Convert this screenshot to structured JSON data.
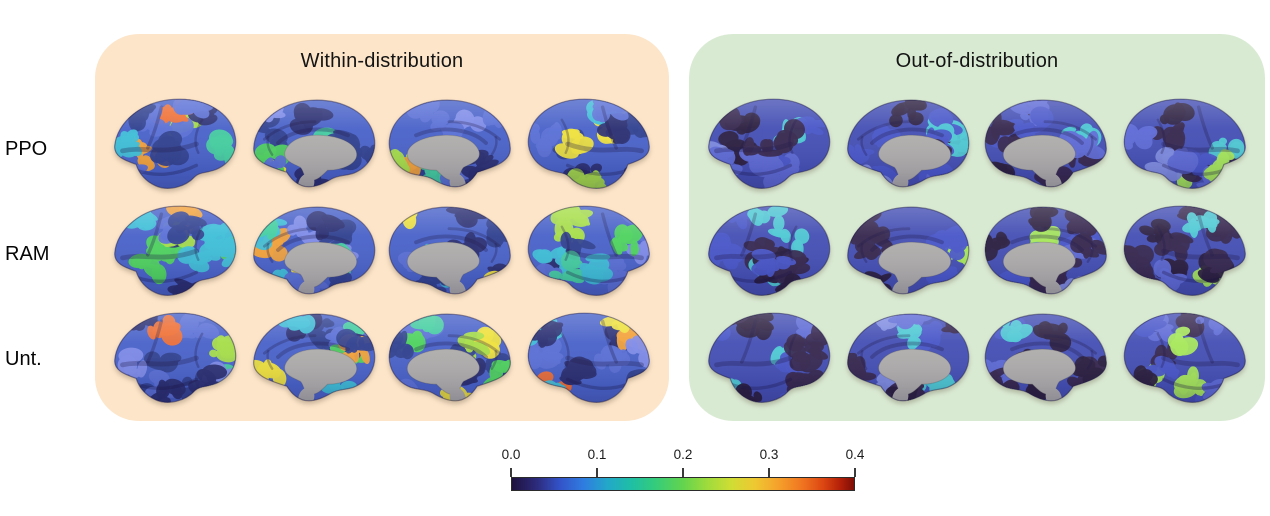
{
  "chart_data": {
    "type": "heatmap",
    "title": "",
    "description": "Brain-surface value maps (3 models x 2 conditions x 4 cortical views) with shared horizontal colorbar",
    "panels": [
      {
        "title": "Within-distribution",
        "rows": [
          "PPO",
          "RAM",
          "Unt."
        ],
        "views": [
          "lateral left",
          "medial left",
          "medial right",
          "lateral right"
        ],
        "value_summary": {
          "PPO": "mostly 0.05-0.2 (blue/cyan), temporo-parietal hotspots reaching ~0.3-0.35 (orange/red)",
          "RAM": "mostly 0.05-0.2, parietal/occipital hotspots up to ~0.3 (yellow/orange)",
          "Unt.": "mostly 0.05-0.2, parietal hotspots up to ~0.3 (yellow/orange)"
        }
      },
      {
        "title": "Out-of-distribution",
        "rows": [
          "PPO",
          "RAM",
          "Unt."
        ],
        "views": [
          "lateral left",
          "medial left",
          "medial right",
          "lateral right"
        ],
        "value_summary": {
          "PPO": "mostly 0-0.1 (dark purple/blue) with scattered patches up to ~0.2 (cyan/green)",
          "RAM": "mostly 0-0.08, darkest maps, sparse cyan/green patches",
          "Unt.": "mostly 0-0.1 with scattered cyan/green patches up to ~0.2"
        }
      }
    ],
    "colorbar": {
      "min": 0.0,
      "max": 0.4,
      "ticks": [
        0.0,
        0.1,
        0.2,
        0.3,
        0.4
      ],
      "colormap": "turbo",
      "orientation": "horizontal",
      "position": "bottom-center"
    }
  },
  "row_labels": [
    {
      "label": "PPO",
      "key": "ppo"
    },
    {
      "label": "RAM",
      "key": "ram"
    },
    {
      "label": "Unt.",
      "key": "unt"
    }
  ],
  "panels": [
    {
      "title": "Within-distribution",
      "key": "within",
      "bg": "#fce5c9",
      "palette": "within"
    },
    {
      "title": "Out-of-distribution",
      "key": "ood",
      "bg": "#d9ead3",
      "palette": "ood"
    }
  ],
  "views": [
    {
      "name": "lateral-left",
      "shape": "lateral",
      "mirror": false
    },
    {
      "name": "medial-left",
      "shape": "medial",
      "mirror": false
    },
    {
      "name": "medial-right",
      "shape": "medial",
      "mirror": true
    },
    {
      "name": "lateral-right",
      "shape": "lateral",
      "mirror": true
    }
  ],
  "palettes": {
    "within": {
      "base": "#4a63c9",
      "medial_gray": "#b0aeac",
      "patches": [
        [
          "#32418f",
          2.6
        ],
        [
          "#2b2f72",
          1.8
        ],
        [
          "#5b70d6",
          2.4
        ],
        [
          "#7f8ce8",
          1.2
        ],
        [
          "#3fbfd8",
          1.6
        ],
        [
          "#46cfa0",
          1.0
        ],
        [
          "#4fd35f",
          1.0
        ],
        [
          "#a6dd4a",
          0.9
        ],
        [
          "#eee23e",
          0.85
        ],
        [
          "#f2a23b",
          0.4
        ],
        [
          "#ee6f35",
          0.18
        ]
      ],
      "row_boost": {
        "0": [
          [
            "#f2a23b",
            0.3
          ],
          [
            "#ee6f35",
            0.25
          ]
        ],
        "2": [
          [
            "#a6dd4a",
            0.3
          ]
        ]
      }
    },
    "ood": {
      "base": "#4550b4",
      "medial_gray": "#b0aeac",
      "patches": [
        [
          "#37284f",
          3.2
        ],
        [
          "#2c2040",
          2.2
        ],
        [
          "#4a57c9",
          2.4
        ],
        [
          "#5f6cd6",
          1.4
        ],
        [
          "#7f8ce0",
          0.8
        ],
        [
          "#4fc9d4",
          1.2
        ],
        [
          "#58dc96",
          0.55
        ],
        [
          "#a8e85c",
          0.3
        ]
      ],
      "row_boost": {
        "1": [
          [
            "#37284f",
            2.0
          ],
          [
            "#2c2040",
            1.6
          ]
        ]
      }
    }
  },
  "colorbar": {
    "tick_labels": [
      "0.0",
      "0.1",
      "0.2",
      "0.3",
      "0.4"
    ],
    "min": 0,
    "max": 0.4,
    "colormap": "turbo",
    "gradient": [
      "#1e123d 0%",
      "#2c2a7a 7%",
      "#3353c8 14%",
      "#2f7de0 21%",
      "#22a8c8 28%",
      "#1fbfa4 35%",
      "#35cc7a 42%",
      "#63d44e 50%",
      "#9edb3c 57%",
      "#cfdd34 64%",
      "#eec832 71%",
      "#f5a02b 78%",
      "#ef7420 85%",
      "#dc4612 91%",
      "#b32008 96%",
      "#7d0d06 100%"
    ]
  }
}
